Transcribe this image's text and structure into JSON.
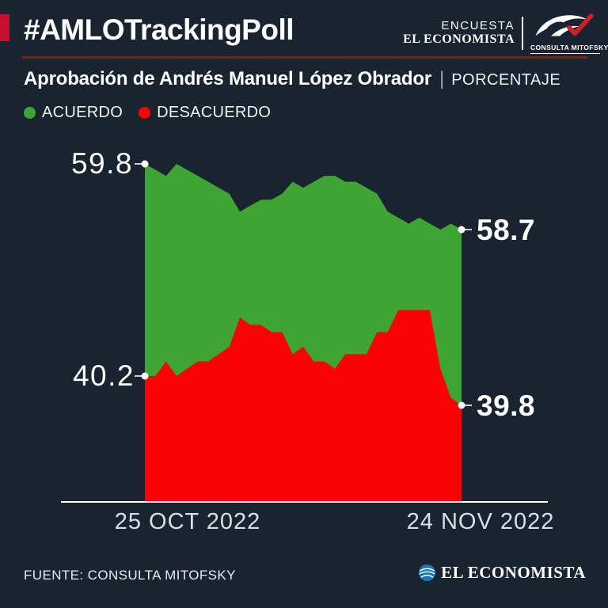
{
  "header": {
    "hashtag_title": "#AMLOTrackingPoll",
    "brand_top": "ENCUESTA",
    "brand_bottom": "EL ECONOMISTA",
    "partner_logo_label": "CONSULTA MITOFSKY",
    "accent_color": "#C8102E",
    "underline_color": "#A60D16"
  },
  "subtitle": {
    "title": "Aprobación de Andrés Manuel López Obrador",
    "separator": "|",
    "unit_label": "PORCENTAJE"
  },
  "legend": [
    {
      "label": "ACUERDO",
      "color": "#3EA434"
    },
    {
      "label": "DESACUERDO",
      "color": "#FA0307"
    }
  ],
  "chart_data": {
    "type": "area",
    "title": "Aprobación de Andrés Manuel López Obrador",
    "unit": "porcentaje",
    "grid": false,
    "legend_position": "top-left",
    "x_tick_labels": [
      "25 OCT 2022",
      "24 NOV 2022"
    ],
    "num_points": 31,
    "series": [
      {
        "name": "ACUERDO",
        "color": "#3EA434",
        "start_label": "59.8",
        "end_label": "58.7",
        "values": [
          59.8,
          59.7,
          59.6,
          59.8,
          59.7,
          59.6,
          59.5,
          59.4,
          59.3,
          59.0,
          59.1,
          59.2,
          59.2,
          59.3,
          59.5,
          59.4,
          59.5,
          59.6,
          59.6,
          59.5,
          59.5,
          59.4,
          59.3,
          59.0,
          58.9,
          58.8,
          58.9,
          58.8,
          58.7,
          58.8,
          58.7
        ]
      },
      {
        "name": "DESACUERDO",
        "color": "#FA0307",
        "start_label": "40.2",
        "end_label": "39.8",
        "values": [
          40.2,
          40.2,
          40.4,
          40.2,
          40.3,
          40.4,
          40.4,
          40.5,
          40.6,
          41.0,
          40.9,
          40.9,
          40.8,
          40.8,
          40.5,
          40.6,
          40.4,
          40.4,
          40.3,
          40.5,
          40.5,
          40.5,
          40.8,
          40.8,
          41.1,
          41.1,
          41.1,
          41.1,
          40.3,
          39.9,
          39.8
        ]
      }
    ]
  },
  "footer": {
    "source": "FUENTE: CONSULTA MITOFSKY",
    "brand": "EL ECONOMISTA",
    "brand_icon_color": "#1478BE"
  }
}
